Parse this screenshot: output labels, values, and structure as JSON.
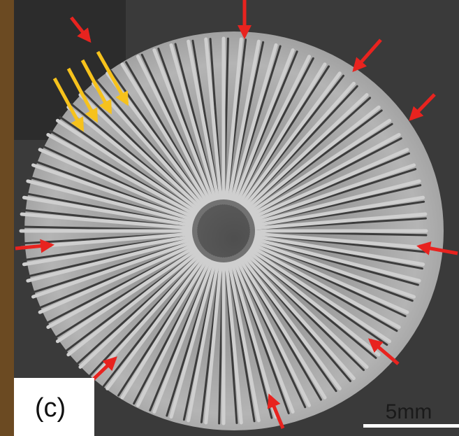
{
  "panel_label": "(c)",
  "scale_bar": "5mm"
}
